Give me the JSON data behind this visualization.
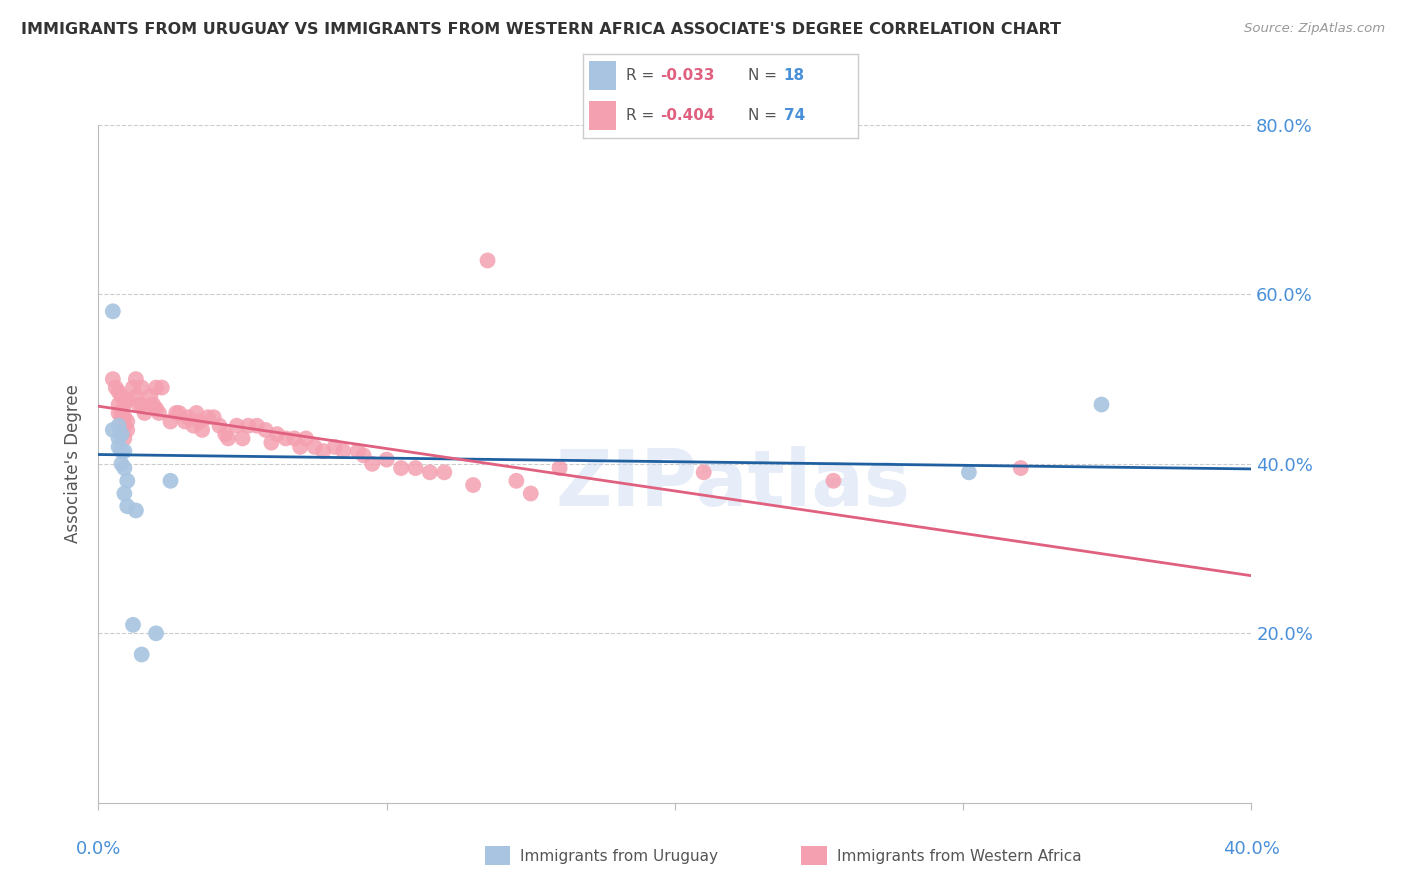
{
  "title": "IMMIGRANTS FROM URUGUAY VS IMMIGRANTS FROM WESTERN AFRICA ASSOCIATE'S DEGREE CORRELATION CHART",
  "source": "Source: ZipAtlas.com",
  "ylabel": "Associate's Degree",
  "xlim": [
    0.0,
    0.4
  ],
  "ylim": [
    0.0,
    0.8
  ],
  "ytick_values": [
    0.2,
    0.4,
    0.6,
    0.8
  ],
  "xtick_values": [
    0.0,
    0.1,
    0.2,
    0.3,
    0.4
  ],
  "color_uruguay": "#a8c4e0",
  "color_western_africa": "#f4a0b0",
  "color_line_uruguay": "#2060a0",
  "color_line_western_africa": "#e06080",
  "color_axis_labels": "#4a90d9",
  "color_title": "#333333",
  "watermark": "ZIPatlas",
  "line_uruguay": [
    0.0,
    0.411,
    0.4,
    0.394
  ],
  "line_western_africa": [
    0.0,
    0.468,
    0.4,
    0.268
  ],
  "uruguay_x": [
    0.005,
    0.005,
    0.007,
    0.007,
    0.007,
    0.008,
    0.008,
    0.008,
    0.009,
    0.009,
    0.009,
    0.01,
    0.01,
    0.012,
    0.013,
    0.015,
    0.02,
    0.025,
    0.302,
    0.348
  ],
  "uruguay_y": [
    0.58,
    0.44,
    0.445,
    0.43,
    0.42,
    0.435,
    0.415,
    0.4,
    0.415,
    0.395,
    0.365,
    0.35,
    0.38,
    0.21,
    0.345,
    0.175,
    0.2,
    0.38,
    0.39,
    0.47
  ],
  "western_africa_x": [
    0.005,
    0.006,
    0.007,
    0.007,
    0.007,
    0.008,
    0.008,
    0.008,
    0.008,
    0.009,
    0.009,
    0.009,
    0.009,
    0.01,
    0.01,
    0.01,
    0.012,
    0.013,
    0.013,
    0.014,
    0.015,
    0.015,
    0.016,
    0.018,
    0.019,
    0.02,
    0.02,
    0.021,
    0.022,
    0.025,
    0.027,
    0.028,
    0.03,
    0.031,
    0.033,
    0.034,
    0.035,
    0.036,
    0.038,
    0.04,
    0.042,
    0.044,
    0.045,
    0.048,
    0.05,
    0.052,
    0.055,
    0.058,
    0.06,
    0.062,
    0.065,
    0.068,
    0.07,
    0.072,
    0.075,
    0.078,
    0.082,
    0.085,
    0.09,
    0.092,
    0.095,
    0.1,
    0.105,
    0.11,
    0.115,
    0.12,
    0.13,
    0.135,
    0.145,
    0.15,
    0.16,
    0.21,
    0.255,
    0.32
  ],
  "western_africa_y": [
    0.5,
    0.49,
    0.47,
    0.485,
    0.46,
    0.46,
    0.455,
    0.44,
    0.48,
    0.445,
    0.47,
    0.455,
    0.43,
    0.44,
    0.45,
    0.475,
    0.49,
    0.48,
    0.5,
    0.47,
    0.47,
    0.49,
    0.46,
    0.48,
    0.47,
    0.49,
    0.465,
    0.46,
    0.49,
    0.45,
    0.46,
    0.46,
    0.45,
    0.455,
    0.445,
    0.46,
    0.45,
    0.44,
    0.455,
    0.455,
    0.445,
    0.435,
    0.43,
    0.445,
    0.43,
    0.445,
    0.445,
    0.44,
    0.425,
    0.435,
    0.43,
    0.43,
    0.42,
    0.43,
    0.42,
    0.415,
    0.42,
    0.415,
    0.415,
    0.41,
    0.4,
    0.405,
    0.395,
    0.395,
    0.39,
    0.39,
    0.375,
    0.64,
    0.38,
    0.365,
    0.395,
    0.39,
    0.38,
    0.395
  ],
  "grid_color": "#cccccc",
  "background_color": "#ffffff"
}
